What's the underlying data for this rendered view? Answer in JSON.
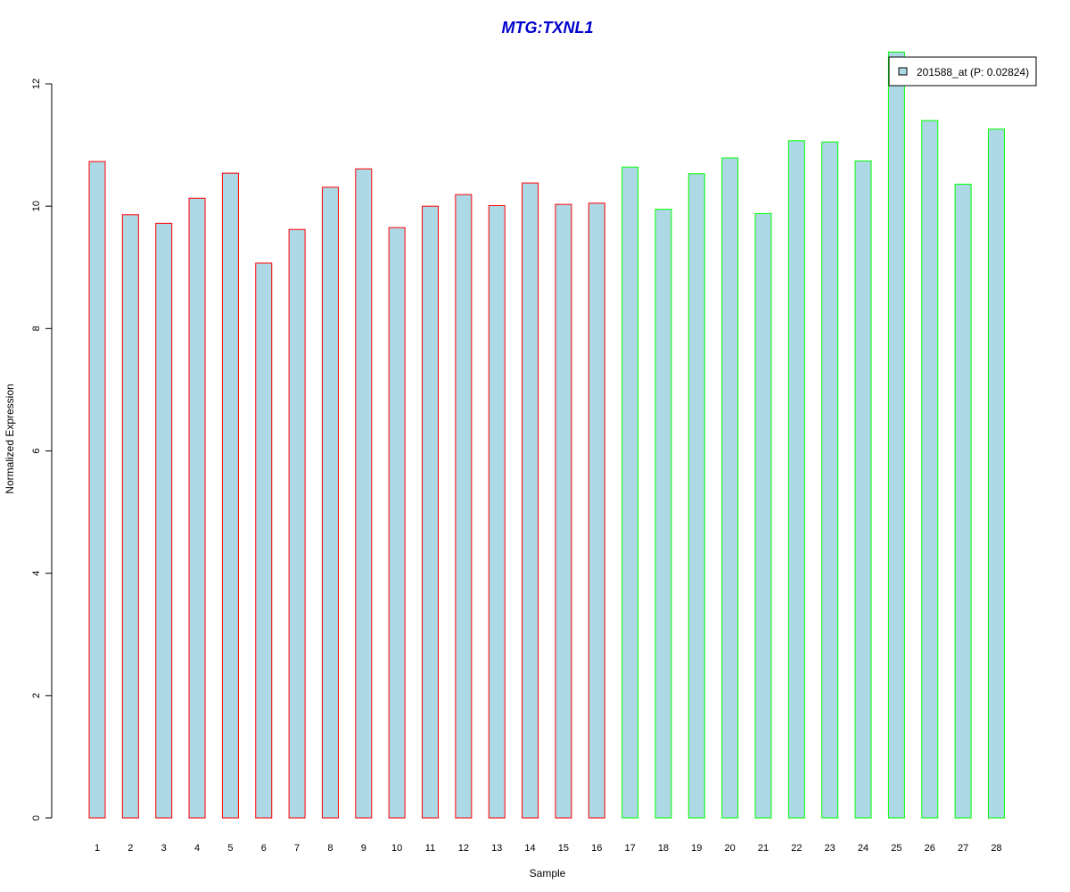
{
  "chart_data": {
    "type": "bar",
    "title": "MTG:TXNL1",
    "xlabel": "Sample",
    "ylabel": "Normalized Expression",
    "categories": [
      "1",
      "2",
      "3",
      "4",
      "5",
      "6",
      "7",
      "8",
      "9",
      "10",
      "11",
      "12",
      "13",
      "14",
      "15",
      "16",
      "17",
      "18",
      "19",
      "20",
      "21",
      "22",
      "23",
      "24",
      "25",
      "26",
      "27",
      "28"
    ],
    "values": [
      10.73,
      9.86,
      9.72,
      10.13,
      10.54,
      9.07,
      9.62,
      10.31,
      10.61,
      9.65,
      10.0,
      10.19,
      10.01,
      10.38,
      10.03,
      10.05,
      10.64,
      9.95,
      10.53,
      10.79,
      9.88,
      11.07,
      11.05,
      10.74,
      12.52,
      11.4,
      10.36,
      11.26
    ],
    "groups": [
      "1",
      "1",
      "1",
      "1",
      "1",
      "1",
      "1",
      "1",
      "1",
      "1",
      "1",
      "1",
      "1",
      "1",
      "1",
      "1",
      "2",
      "2",
      "2",
      "2",
      "2",
      "2",
      "2",
      "2",
      "2",
      "2",
      "2",
      "2"
    ],
    "y_ticks": [
      "0",
      "2",
      "4",
      "6",
      "8",
      "10",
      "12"
    ],
    "ylim": [
      0,
      12
    ],
    "grid": false,
    "legend": {
      "position": "top-right",
      "entries": [
        {
          "label": "201588_at (P: 0.02824)",
          "fill": "#add8e6"
        }
      ]
    },
    "colors": {
      "bar_fill": "#add8e6",
      "group1_border": "#ff0000",
      "group2_border": "#00ff00",
      "title": "#0000cd",
      "axis": "#000000"
    }
  }
}
